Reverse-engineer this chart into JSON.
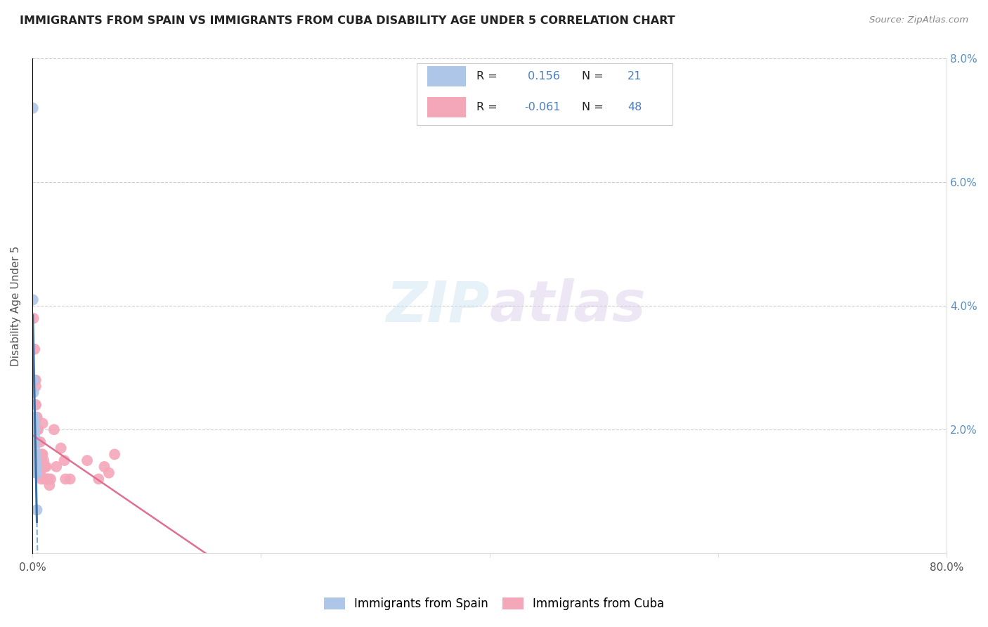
{
  "title": "IMMIGRANTS FROM SPAIN VS IMMIGRANTS FROM CUBA DISABILITY AGE UNDER 5 CORRELATION CHART",
  "source": "Source: ZipAtlas.com",
  "ylabel": "Disability Age Under 5",
  "xlim": [
    0,
    0.8
  ],
  "ylim": [
    0,
    0.08
  ],
  "spain_color": "#aec6e8",
  "cuba_color": "#f4a7b9",
  "spain_line_color_solid": "#3a6da0",
  "spain_line_color_dashed": "#7aaed0",
  "cuba_line_color": "#e07090",
  "spain_R": 0.156,
  "spain_N": 21,
  "cuba_R": -0.061,
  "cuba_N": 48,
  "legend_labels": [
    "Immigrants from Spain",
    "Immigrants from Cuba"
  ],
  "watermark": "ZIPatlas",
  "spain_x": [
    0.0005,
    0.001,
    0.001,
    0.0015,
    0.002,
    0.002,
    0.002,
    0.002,
    0.002,
    0.002,
    0.003,
    0.003,
    0.003,
    0.003,
    0.003,
    0.003,
    0.003,
    0.004,
    0.004,
    0.004,
    0.0005
  ],
  "spain_y": [
    0.072,
    0.028,
    0.026,
    0.022,
    0.021,
    0.02,
    0.019,
    0.018,
    0.017,
    0.016,
    0.016,
    0.015,
    0.015,
    0.015,
    0.014,
    0.014,
    0.013,
    0.014,
    0.013,
    0.007,
    0.041
  ],
  "cuba_x": [
    0.001,
    0.002,
    0.002,
    0.003,
    0.003,
    0.003,
    0.003,
    0.004,
    0.004,
    0.004,
    0.004,
    0.005,
    0.005,
    0.005,
    0.005,
    0.006,
    0.006,
    0.006,
    0.006,
    0.007,
    0.007,
    0.007,
    0.008,
    0.008,
    0.008,
    0.009,
    0.009,
    0.01,
    0.01,
    0.011,
    0.011,
    0.012,
    0.013,
    0.013,
    0.014,
    0.015,
    0.016,
    0.019,
    0.021,
    0.025,
    0.028,
    0.029,
    0.033,
    0.048,
    0.058,
    0.063,
    0.067,
    0.072
  ],
  "cuba_y": [
    0.038,
    0.033,
    0.028,
    0.028,
    0.027,
    0.024,
    0.024,
    0.022,
    0.022,
    0.02,
    0.02,
    0.02,
    0.018,
    0.018,
    0.015,
    0.015,
    0.014,
    0.014,
    0.013,
    0.018,
    0.013,
    0.014,
    0.012,
    0.016,
    0.015,
    0.021,
    0.016,
    0.015,
    0.014,
    0.014,
    0.012,
    0.014,
    0.012,
    0.012,
    0.012,
    0.011,
    0.012,
    0.02,
    0.014,
    0.017,
    0.015,
    0.012,
    0.012,
    0.015,
    0.012,
    0.014,
    0.013,
    0.016
  ]
}
